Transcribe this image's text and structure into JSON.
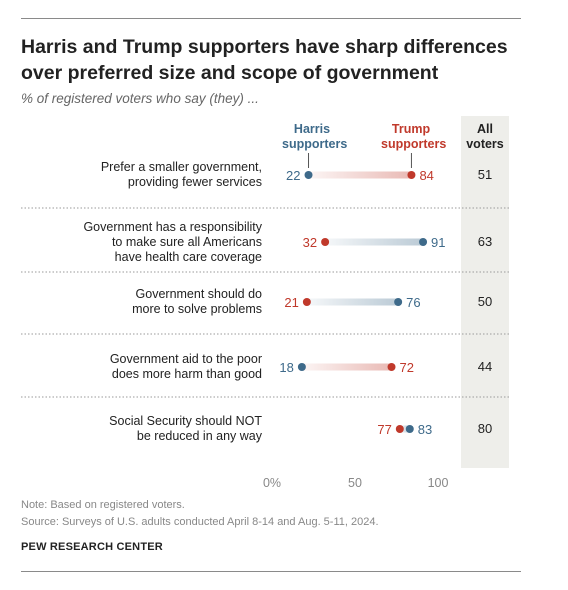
{
  "title_lines": [
    "Harris and Trump supporters have sharp differences",
    "over preferred size and scope of government"
  ],
  "subtitle": "% of registered voters who say (they) ...",
  "headers": {
    "harris": [
      "Harris",
      "supporters"
    ],
    "trump": [
      "Trump",
      "supporters"
    ],
    "all": [
      "All",
      "voters"
    ]
  },
  "colors": {
    "harris": "#3e6a8a",
    "trump": "#c0392b",
    "all_bg": "#eeeeea"
  },
  "chart_data": {
    "type": "dot-plot",
    "categories": [
      [
        "Prefer a smaller government,",
        "providing fewer services"
      ],
      [
        "Government has a responsibility",
        "to make sure all Americans",
        "have health care coverage"
      ],
      [
        "Government should do",
        "more to solve problems"
      ],
      [
        "Government aid to the poor",
        "does more harm than good"
      ],
      [
        "Social Security should NOT",
        "be reduced in any way"
      ]
    ],
    "series": [
      {
        "name": "Harris supporters",
        "values": [
          22,
          91,
          76,
          18,
          83
        ]
      },
      {
        "name": "Trump supporters",
        "values": [
          84,
          32,
          21,
          72,
          77
        ]
      },
      {
        "name": "All voters",
        "values": [
          51,
          63,
          50,
          44,
          80
        ]
      }
    ],
    "x_ticks": [
      "0%",
      "50",
      "100"
    ],
    "xlim": [
      0,
      100
    ]
  },
  "notes": [
    "Note: Based on registered voters.",
    "Source: Surveys of U.S. adults conducted April 8-14 and Aug. 5-11, 2024."
  ],
  "brand": "PEW RESEARCH CENTER"
}
